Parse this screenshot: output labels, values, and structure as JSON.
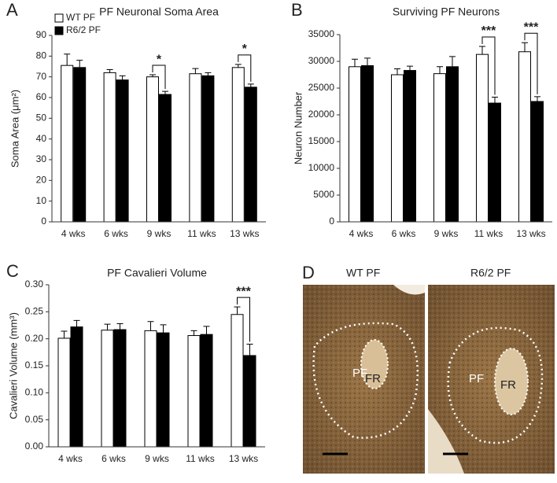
{
  "chart_data": [
    {
      "type": "bar",
      "panel_label": "A",
      "title": "PF Neuronal Soma Area",
      "y_label": "Soma Area (μm²)",
      "categories": [
        "4 wks",
        "6 wks",
        "9 wks",
        "11 wks",
        "13 wks"
      ],
      "series": [
        {
          "name": "WT PF",
          "color": "#ffffff",
          "values": [
            75.5,
            72,
            70,
            71.5,
            74.5
          ],
          "errors": [
            5.5,
            1.5,
            1,
            2.5,
            1.5
          ]
        },
        {
          "name": "R6/2 PF",
          "color": "#000000",
          "values": [
            74.5,
            68.5,
            61.5,
            70.5,
            65
          ],
          "errors": [
            3.5,
            2,
            1.5,
            1.5,
            1.5
          ]
        }
      ],
      "significance": [
        null,
        null,
        "*",
        null,
        "*"
      ],
      "ylim": [
        0,
        90
      ],
      "yticks": [
        0,
        10,
        20,
        30,
        40,
        50,
        60,
        70,
        80,
        90
      ],
      "legend": "top-left"
    },
    {
      "type": "bar",
      "panel_label": "B",
      "title": "Surviving PF Neurons",
      "y_label": "Neuron Number",
      "categories": [
        "4 wks",
        "6 wks",
        "9 wks",
        "11 wks",
        "13 wks"
      ],
      "series": [
        {
          "name": "WT PF",
          "color": "#ffffff",
          "values": [
            29000,
            27500,
            27700,
            31300,
            31800
          ],
          "errors": [
            1400,
            1100,
            1300,
            1500,
            1700
          ]
        },
        {
          "name": "R6/2 PF",
          "color": "#000000",
          "values": [
            29200,
            28300,
            29000,
            22200,
            22500
          ],
          "errors": [
            1400,
            800,
            1900,
            1100,
            900
          ]
        }
      ],
      "significance": [
        null,
        null,
        null,
        "***",
        "***"
      ],
      "ylim": [
        0,
        35000
      ],
      "yticks": [
        0,
        5000,
        10000,
        15000,
        20000,
        25000,
        30000,
        35000
      ]
    },
    {
      "type": "bar",
      "panel_label": "C",
      "title": "PF Cavalieri Volume",
      "y_label": "Cavalieri Volume (mm³)",
      "categories": [
        "4 wks",
        "6 wks",
        "9 wks",
        "11 wks",
        "13 wks"
      ],
      "series": [
        {
          "name": "WT PF",
          "color": "#ffffff",
          "values": [
            0.201,
            0.216,
            0.215,
            0.206,
            0.245
          ],
          "errors": [
            0.013,
            0.011,
            0.017,
            0.009,
            0.014
          ]
        },
        {
          "name": "R6/2 PF",
          "color": "#000000",
          "values": [
            0.222,
            0.217,
            0.211,
            0.208,
            0.169
          ],
          "errors": [
            0.012,
            0.011,
            0.015,
            0.015,
            0.021
          ]
        }
      ],
      "significance": [
        null,
        null,
        null,
        null,
        "***"
      ],
      "ylim": [
        0,
        0.3
      ],
      "yticks": [
        {
          "value": 0,
          "label": "0.00"
        },
        {
          "value": 0.05,
          "label": "0.05"
        },
        {
          "value": 0.1,
          "label": "0.10"
        },
        {
          "value": 0.15,
          "label": "0.15"
        },
        {
          "value": 0.2,
          "label": "0.20"
        },
        {
          "value": 0.25,
          "label": "0.25"
        },
        {
          "value": 0.3,
          "label": "0.30"
        }
      ]
    }
  ],
  "image_panel": {
    "panel_label": "D",
    "images": [
      {
        "title": "WT PF",
        "labels": [
          "PF",
          "FR"
        ]
      },
      {
        "title": "R6/2 PF",
        "labels": [
          "PF",
          "FR"
        ]
      }
    ]
  }
}
